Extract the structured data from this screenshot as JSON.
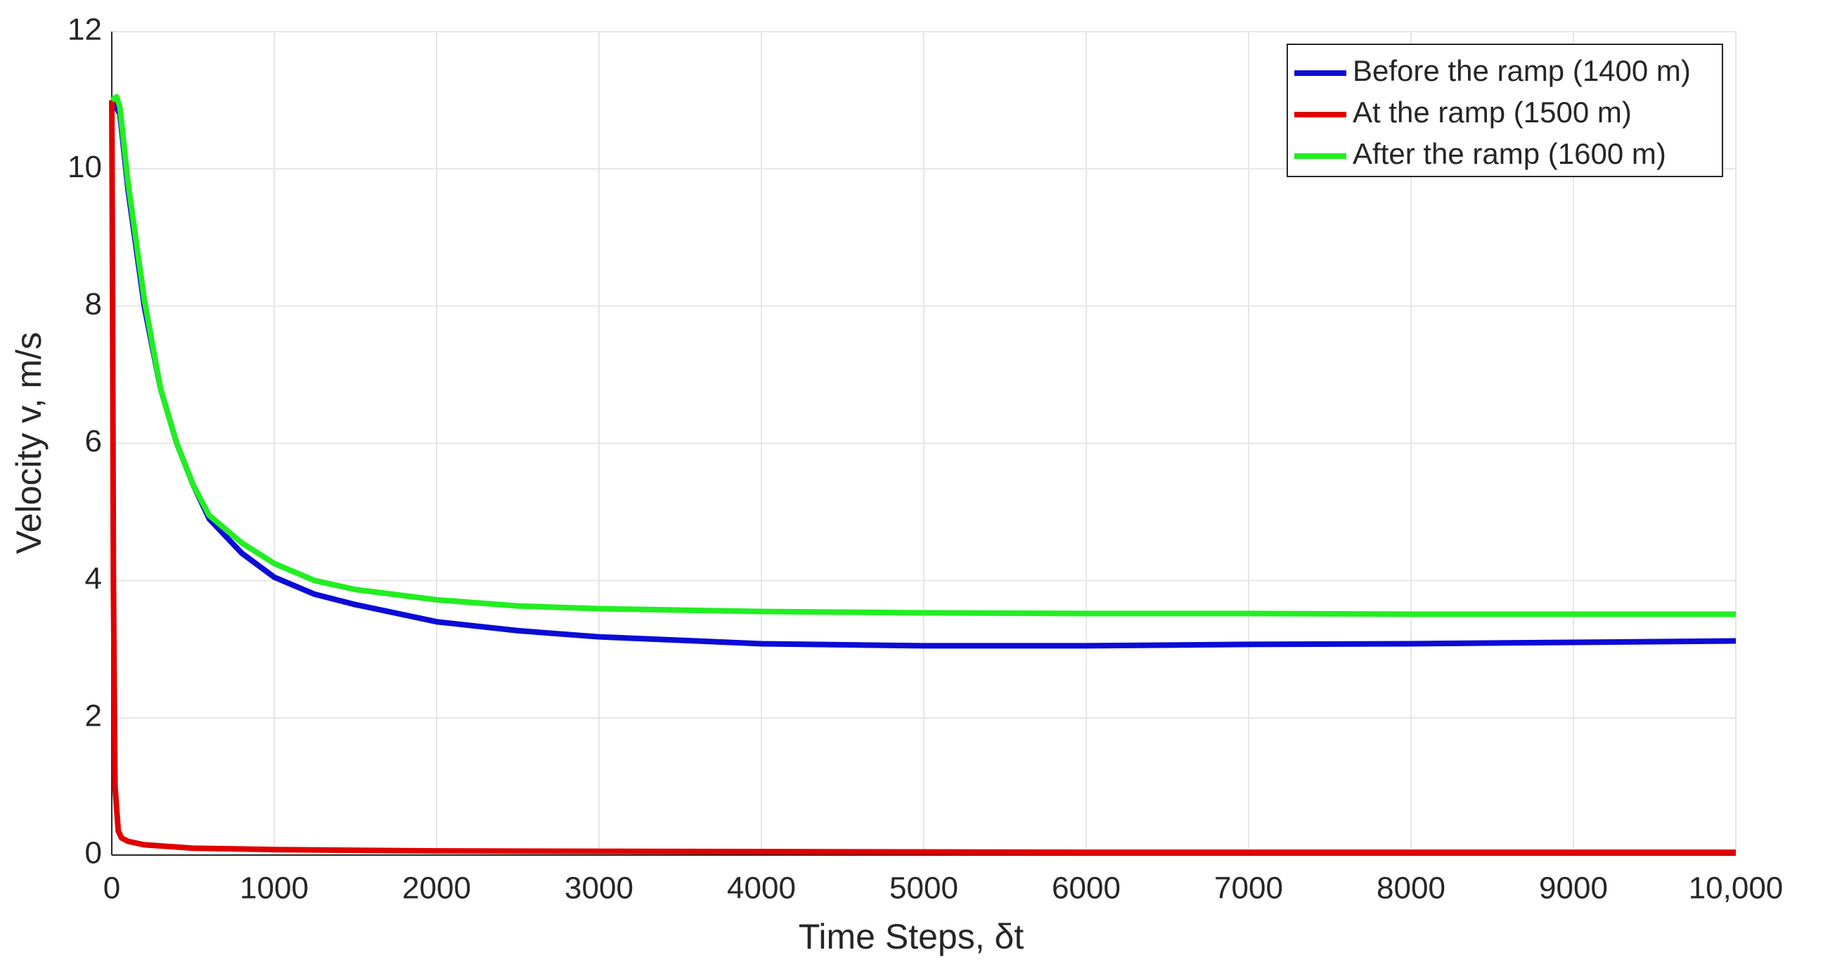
{
  "chart_data": {
    "type": "line",
    "xlabel": "Time Steps, δt",
    "ylabel": "Velocity v,  m/s",
    "xlim": [
      0,
      10000
    ],
    "ylim": [
      0,
      12
    ],
    "xticks": [
      0,
      1000,
      2000,
      3000,
      4000,
      5000,
      6000,
      7000,
      8000,
      9000,
      {
        "value": 10000,
        "label": "10,000"
      }
    ],
    "yticks": [
      0,
      2,
      4,
      6,
      8,
      10,
      12
    ],
    "grid": true,
    "legend": "northeast",
    "series": [
      {
        "name": "Before the ramp (1400 m)",
        "color": "#0b0bd6",
        "x": [
          0,
          50,
          100,
          200,
          300,
          400,
          500,
          600,
          800,
          1000,
          1250,
          1500,
          2000,
          2500,
          3000,
          4000,
          5000,
          6000,
          7000,
          8000,
          9000,
          10000
        ],
        "values": [
          11.0,
          10.8,
          9.7,
          8.0,
          6.8,
          6.0,
          5.4,
          4.9,
          4.4,
          4.05,
          3.8,
          3.65,
          3.4,
          3.27,
          3.18,
          3.08,
          3.05,
          3.05,
          3.07,
          3.08,
          3.1,
          3.12
        ]
      },
      {
        "name": "At the ramp (1500 m)",
        "color": "#e00000",
        "x": [
          0,
          5,
          10,
          20,
          40,
          60,
          100,
          200,
          500,
          1000,
          2000,
          4000,
          6000,
          10000
        ],
        "values": [
          11.0,
          8.0,
          4.0,
          1.0,
          0.35,
          0.25,
          0.2,
          0.15,
          0.1,
          0.08,
          0.06,
          0.05,
          0.04,
          0.04
        ]
      },
      {
        "name": "After the ramp (1600 m)",
        "color": "#22ee22",
        "x": [
          0,
          30,
          50,
          100,
          200,
          300,
          400,
          500,
          600,
          800,
          1000,
          1250,
          1500,
          2000,
          2500,
          3000,
          4000,
          5000,
          6000,
          7000,
          8000,
          9000,
          10000
        ],
        "values": [
          11.0,
          11.05,
          10.9,
          9.8,
          8.1,
          6.8,
          6.0,
          5.4,
          4.95,
          4.55,
          4.25,
          4.0,
          3.87,
          3.72,
          3.63,
          3.59,
          3.55,
          3.53,
          3.52,
          3.52,
          3.51,
          3.51,
          3.51
        ]
      }
    ]
  }
}
